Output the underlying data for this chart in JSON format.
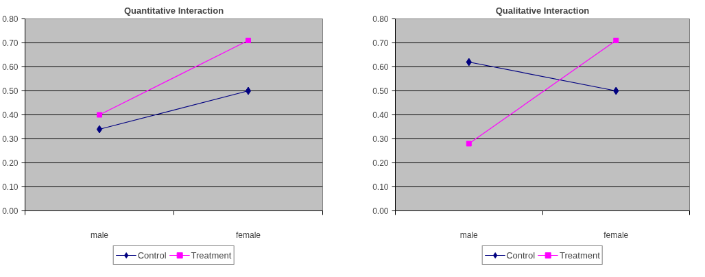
{
  "chart_data": [
    {
      "type": "line",
      "title": "Quantitative Interaction",
      "categories": [
        "male",
        "female"
      ],
      "ylim": [
        0,
        0.8
      ],
      "yticks": [
        {
          "value": 0,
          "label": "0.00"
        },
        {
          "value": 0.1,
          "label": "0.10"
        },
        {
          "value": 0.2,
          "label": "0.20"
        },
        {
          "value": 0.3,
          "label": "0.30"
        },
        {
          "value": 0.4,
          "label": "0.40"
        },
        {
          "value": 0.5,
          "label": "0.50"
        },
        {
          "value": 0.6,
          "label": "0.60"
        },
        {
          "value": 0.7,
          "label": "0.70"
        },
        {
          "value": 0.8,
          "label": "0.80"
        }
      ],
      "grid": "y",
      "legend": "bottom",
      "series": [
        {
          "name": "Control",
          "color": "#000080",
          "marker": "diamond",
          "values": [
            0.34,
            0.5
          ]
        },
        {
          "name": "Treatment",
          "color": "#ff00ff",
          "marker": "square",
          "values": [
            0.4,
            0.71
          ]
        }
      ]
    },
    {
      "type": "line",
      "title": "Qualitative Interaction",
      "categories": [
        "male",
        "female"
      ],
      "ylim": [
        0,
        0.8
      ],
      "yticks": [
        {
          "value": 0,
          "label": "0.00"
        },
        {
          "value": 0.1,
          "label": "0.10"
        },
        {
          "value": 0.2,
          "label": "0.20"
        },
        {
          "value": 0.3,
          "label": "0.30"
        },
        {
          "value": 0.4,
          "label": "0.40"
        },
        {
          "value": 0.5,
          "label": "0.50"
        },
        {
          "value": 0.6,
          "label": "0.60"
        },
        {
          "value": 0.7,
          "label": "0.70"
        },
        {
          "value": 0.8,
          "label": "0.80"
        }
      ],
      "grid": "y",
      "legend": "bottom",
      "series": [
        {
          "name": "Control",
          "color": "#000080",
          "marker": "diamond",
          "values": [
            0.62,
            0.5
          ]
        },
        {
          "name": "Treatment",
          "color": "#ff00ff",
          "marker": "square",
          "values": [
            0.28,
            0.71
          ]
        }
      ]
    }
  ]
}
